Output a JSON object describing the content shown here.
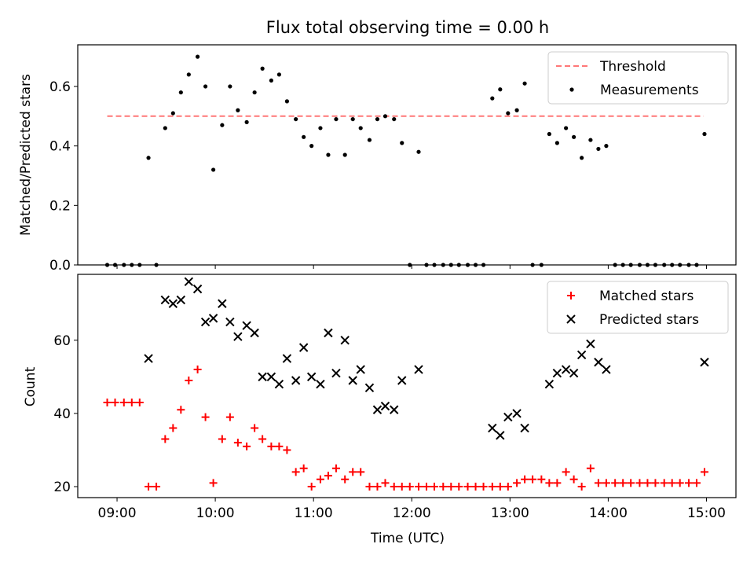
{
  "chart_data": [
    {
      "type": "scatter",
      "title": "Flux total observing time = 0.00 h",
      "xlabel": "",
      "ylabel": "Matched/Predicted stars",
      "x_unit": "hours (UTC)",
      "xlim": [
        8.6,
        15.3
      ],
      "ylim": [
        0,
        0.74
      ],
      "x_ticks": [
        9,
        10,
        11,
        12,
        13,
        14,
        15
      ],
      "x_tick_labels": [
        "09:00",
        "10:00",
        "11:00",
        "12:00",
        "13:00",
        "14:00",
        "15:00"
      ],
      "y_ticks": [
        0,
        0.2,
        0.4,
        0.6
      ],
      "y_tick_labels": [
        "0.0",
        "0.2",
        "0.4",
        "0.6"
      ],
      "legend_position": "top-right",
      "series": [
        {
          "name": "Threshold",
          "style": "dashed-line",
          "color": "#ff7777",
          "x": [
            8.9,
            14.97
          ],
          "y": [
            0.5,
            0.5
          ]
        },
        {
          "name": "Measurements",
          "style": "dot",
          "color": "#000000",
          "x": [
            8.9,
            8.98,
            9.07,
            9.15,
            9.23,
            9.32,
            9.4,
            9.49,
            9.57,
            9.65,
            9.73,
            9.82,
            9.9,
            9.98,
            10.07,
            10.15,
            10.23,
            10.32,
            10.4,
            10.48,
            10.57,
            10.65,
            10.73,
            10.82,
            10.9,
            10.98,
            11.07,
            11.15,
            11.23,
            11.32,
            11.4,
            11.48,
            11.57,
            11.65,
            11.73,
            11.82,
            11.9,
            11.98,
            12.07,
            12.15,
            12.23,
            12.32,
            12.4,
            12.48,
            12.57,
            12.65,
            12.73,
            12.82,
            12.9,
            12.98,
            13.07,
            13.15,
            13.23,
            13.32,
            13.4,
            13.48,
            13.57,
            13.65,
            13.73,
            13.82,
            13.9,
            13.98,
            14.07,
            14.15,
            14.23,
            14.32,
            14.4,
            14.48,
            14.57,
            14.65,
            14.73,
            14.82,
            14.9,
            14.98
          ],
          "y": [
            0,
            0,
            0,
            0,
            0,
            0.36,
            0,
            0.46,
            0.51,
            0.58,
            0.64,
            0.7,
            0.6,
            0.32,
            0.47,
            0.6,
            0.52,
            0.48,
            0.58,
            0.66,
            0.62,
            0.64,
            0.55,
            0.49,
            0.43,
            0.4,
            0.46,
            0.37,
            0.49,
            0.37,
            0.49,
            0.46,
            0.42,
            0.49,
            0.5,
            0.49,
            0.41,
            0,
            0.38,
            0,
            0,
            0,
            0,
            0,
            0,
            0,
            0,
            0.56,
            0.59,
            0.51,
            0.52,
            0.61,
            0,
            0,
            0.44,
            0.41,
            0.46,
            0.43,
            0.36,
            0.42,
            0.39,
            0.4,
            0,
            0,
            0,
            0,
            0,
            0,
            0,
            0,
            0,
            0,
            0,
            0.44
          ]
        }
      ]
    },
    {
      "type": "scatter",
      "title": "",
      "xlabel": "Time (UTC)",
      "ylabel": "Count",
      "x_unit": "hours (UTC)",
      "xlim": [
        8.6,
        15.3
      ],
      "ylim": [
        17,
        78
      ],
      "x_ticks": [
        9,
        10,
        11,
        12,
        13,
        14,
        15
      ],
      "x_tick_labels": [
        "09:00",
        "10:00",
        "11:00",
        "12:00",
        "13:00",
        "14:00",
        "15:00"
      ],
      "y_ticks": [
        20,
        40,
        60
      ],
      "y_tick_labels": [
        "20",
        "40",
        "60"
      ],
      "legend_position": "top-right",
      "series": [
        {
          "name": "Matched stars",
          "marker": "plus",
          "color": "#ff0000",
          "x": [
            8.9,
            8.98,
            9.07,
            9.15,
            9.23,
            9.32,
            9.4,
            9.49,
            9.57,
            9.65,
            9.73,
            9.82,
            9.9,
            9.98,
            10.07,
            10.15,
            10.23,
            10.32,
            10.4,
            10.48,
            10.57,
            10.65,
            10.73,
            10.82,
            10.9,
            10.98,
            11.07,
            11.15,
            11.23,
            11.32,
            11.4,
            11.48,
            11.57,
            11.65,
            11.73,
            11.82,
            11.9,
            11.98,
            12.07,
            12.15,
            12.23,
            12.32,
            12.4,
            12.48,
            12.57,
            12.65,
            12.73,
            12.82,
            12.9,
            12.98,
            13.07,
            13.15,
            13.23,
            13.32,
            13.4,
            13.48,
            13.57,
            13.65,
            13.73,
            13.82,
            13.9,
            13.98,
            14.07,
            14.15,
            14.23,
            14.32,
            14.4,
            14.48,
            14.57,
            14.65,
            14.73,
            14.82,
            14.9,
            14.98
          ],
          "y": [
            43,
            43,
            43,
            43,
            43,
            20,
            20,
            33,
            36,
            41,
            49,
            52,
            39,
            21,
            33,
            39,
            32,
            31,
            36,
            33,
            31,
            31,
            30,
            24,
            25,
            20,
            22,
            23,
            25,
            22,
            24,
            24,
            20,
            20,
            21,
            20,
            20,
            20,
            20,
            20,
            20,
            20,
            20,
            20,
            20,
            20,
            20,
            20,
            20,
            20,
            21,
            22,
            22,
            22,
            21,
            21,
            24,
            22,
            20,
            25,
            21,
            21,
            21,
            21,
            21,
            21,
            21,
            21,
            21,
            21,
            21,
            21,
            21,
            24
          ]
        },
        {
          "name": "Predicted stars",
          "marker": "x",
          "color": "#000000",
          "x": [
            9.32,
            9.49,
            9.57,
            9.65,
            9.73,
            9.82,
            9.9,
            9.98,
            10.07,
            10.15,
            10.23,
            10.32,
            10.4,
            10.48,
            10.57,
            10.65,
            10.73,
            10.82,
            10.9,
            10.98,
            11.07,
            11.15,
            11.23,
            11.32,
            11.4,
            11.48,
            11.57,
            11.65,
            11.73,
            11.82,
            11.9,
            12.07,
            12.82,
            12.9,
            12.98,
            13.07,
            13.15,
            13.4,
            13.48,
            13.57,
            13.65,
            13.73,
            13.82,
            13.9,
            13.98,
            14.98
          ],
          "y": [
            55,
            71,
            70,
            71,
            76,
            74,
            65,
            66,
            70,
            65,
            61,
            64,
            62,
            50,
            50,
            48,
            55,
            49,
            58,
            50,
            48,
            62,
            51,
            60,
            49,
            52,
            47,
            41,
            42,
            41,
            49,
            52,
            36,
            34,
            39,
            40,
            36,
            48,
            51,
            52,
            51,
            56,
            59,
            54,
            52,
            54
          ]
        }
      ]
    }
  ]
}
